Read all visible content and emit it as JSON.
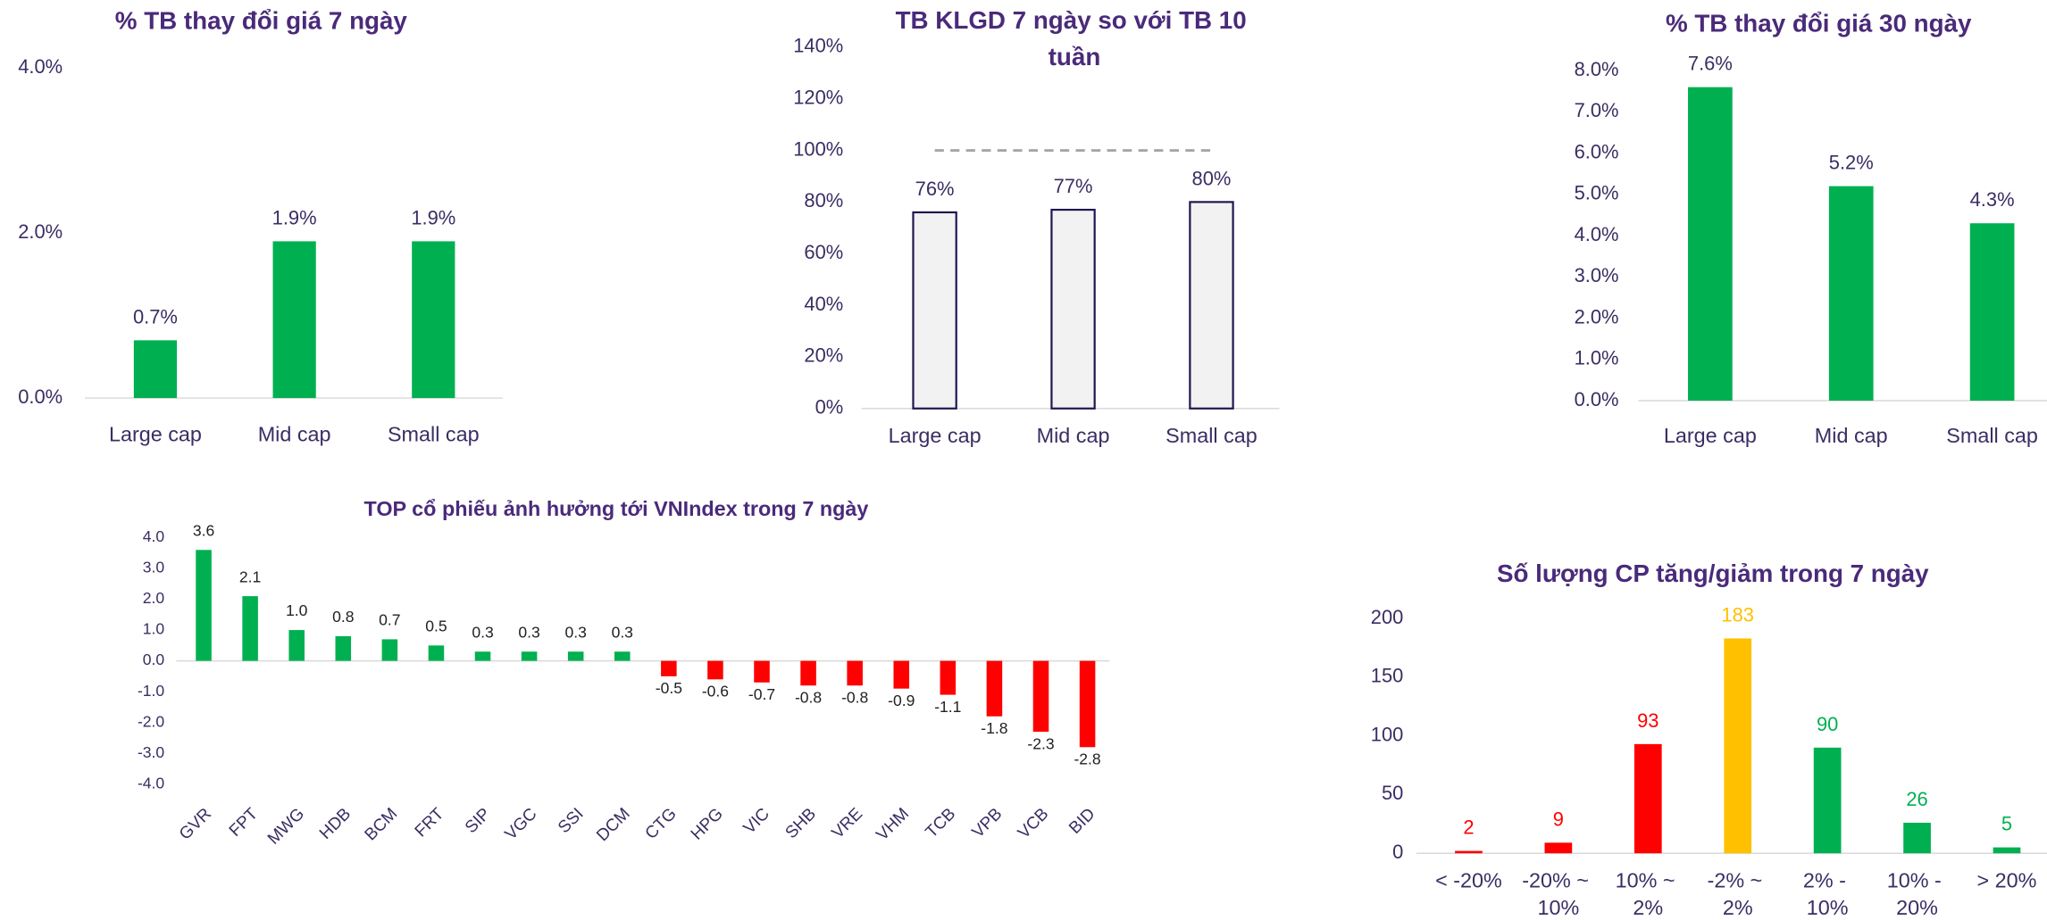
{
  "chart_data": [
    {
      "type": "bar",
      "title": "% TB thay đổi giá 7 ngày",
      "categories": [
        "Large cap",
        "Mid cap",
        "Small cap"
      ],
      "values": [
        0.7,
        1.9,
        1.9
      ],
      "value_labels": [
        "0.7%",
        "1.9%",
        "1.9%"
      ],
      "color": "#00b050",
      "ylim": [
        0,
        4
      ],
      "yticks": [
        {
          "value": 0,
          "label": "0.0%"
        },
        {
          "value": 2,
          "label": "2.0%"
        },
        {
          "value": 4,
          "label": "4.0%"
        }
      ]
    },
    {
      "type": "bar",
      "title": "TB KLGD 7 ngày so với TB 10 tuần",
      "categories": [
        "Large cap",
        "Mid cap",
        "Small cap"
      ],
      "values": [
        76,
        77,
        80
      ],
      "value_labels": [
        "76%",
        "77%",
        "80%"
      ],
      "color": "#f2f2f2",
      "edge_color": "#1f1650",
      "reference_line": 100,
      "ylim": [
        0,
        140
      ],
      "yticks": [
        {
          "value": 0,
          "label": "0%"
        },
        {
          "value": 20,
          "label": "20%"
        },
        {
          "value": 40,
          "label": "40%"
        },
        {
          "value": 60,
          "label": "60%"
        },
        {
          "value": 80,
          "label": "80%"
        },
        {
          "value": 100,
          "label": "100%"
        },
        {
          "value": 120,
          "label": "120%"
        },
        {
          "value": 140,
          "label": "140%"
        }
      ]
    },
    {
      "type": "bar",
      "title": "% TB thay đổi giá 30 ngày",
      "categories": [
        "Large cap",
        "Mid cap",
        "Small cap"
      ],
      "values": [
        7.6,
        5.2,
        4.3
      ],
      "value_labels": [
        "7.6%",
        "5.2%",
        "4.3%"
      ],
      "color": "#00b050",
      "ylim": [
        0,
        8
      ],
      "yticks": [
        {
          "value": 0,
          "label": "0.0%"
        },
        {
          "value": 1,
          "label": "1.0%"
        },
        {
          "value": 2,
          "label": "2.0%"
        },
        {
          "value": 3,
          "label": "3.0%"
        },
        {
          "value": 4,
          "label": "4.0%"
        },
        {
          "value": 5,
          "label": "5.0%"
        },
        {
          "value": 6,
          "label": "6.0%"
        },
        {
          "value": 7,
          "label": "7.0%"
        },
        {
          "value": 8,
          "label": "8.0%"
        }
      ]
    },
    {
      "type": "bar",
      "title": "TOP cổ phiếu ảnh hưởng tới VNIndex trong 7 ngày",
      "categories": [
        "GVR",
        "FPT",
        "MWG",
        "HDB",
        "BCM",
        "FRT",
        "SIP",
        "VGC",
        "SSI",
        "DCM",
        "CTG",
        "HPG",
        "VIC",
        "SHB",
        "VRE",
        "VHM",
        "TCB",
        "VPB",
        "VCB",
        "BID"
      ],
      "values": [
        3.6,
        2.1,
        1.0,
        0.8,
        0.7,
        0.5,
        0.3,
        0.3,
        0.3,
        0.3,
        -0.5,
        -0.6,
        -0.7,
        -0.8,
        -0.8,
        -0.9,
        -1.1,
        -1.8,
        -2.3,
        -2.8
      ],
      "value_labels": [
        "3.6",
        "2.1",
        "1.0",
        "0.8",
        "0.7",
        "0.5",
        "0.3",
        "0.3",
        "0.3",
        "0.3",
        "-0.5",
        "-0.6",
        "-0.7",
        "-0.8",
        "-0.8",
        "-0.9",
        "-1.1",
        "-1.8",
        "-2.3",
        "-2.8"
      ],
      "positive_color": "#00b050",
      "negative_color": "#ff0000",
      "ylim": [
        -4,
        4
      ],
      "yticks": [
        {
          "value": 4,
          "label": "4.0"
        },
        {
          "value": 3,
          "label": "3.0"
        },
        {
          "value": 2,
          "label": "2.0"
        },
        {
          "value": 1,
          "label": "1.0"
        },
        {
          "value": 0,
          "label": "0.0"
        },
        {
          "value": -1,
          "label": "-1.0"
        },
        {
          "value": -2,
          "label": "-2.0"
        },
        {
          "value": -3,
          "label": "-3.0"
        },
        {
          "value": -4,
          "label": "-4.0"
        }
      ]
    },
    {
      "type": "bar",
      "title": "Số lượng CP tăng/giảm trong 7 ngày",
      "categories": [
        "< -20%",
        "-20% ~ 10%",
        "10% ~ 2%",
        "-2% ~ 2%",
        "2% - 10%",
        "10% - 20%",
        "> 20%"
      ],
      "values": [
        2,
        9,
        93,
        183,
        90,
        26,
        5
      ],
      "colors": [
        "#ff0000",
        "#ff0000",
        "#ff0000",
        "#ffc000",
        "#00b050",
        "#00b050",
        "#00b050"
      ],
      "ylim": [
        0,
        200
      ],
      "yticks": [
        0,
        50,
        100,
        150,
        200
      ]
    }
  ]
}
